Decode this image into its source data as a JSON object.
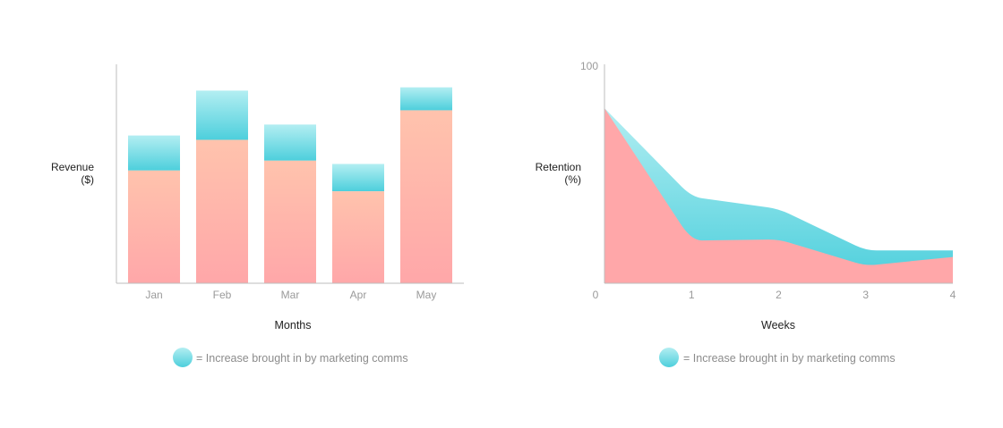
{
  "colors": {
    "base_top": "#ffc3ad",
    "base_bottom": "#ffa7a9",
    "increase_top": "#b3eef2",
    "increase_bottom": "#4dcfdc",
    "axis": "#bdbdbd",
    "tick_text": "#9a9a9a",
    "label_text": "#222222",
    "legend_text": "#8c8c8c"
  },
  "chart_data": [
    {
      "type": "bar",
      "stacked": true,
      "categories": [
        "Jan",
        "Feb",
        "Mar",
        "Apr",
        "May"
      ],
      "series": [
        {
          "values": [
            51.5,
            65.5,
            56,
            42,
            79
          ]
        },
        {
          "values": [
            16,
            22.5,
            16.5,
            12.5,
            10.5
          ]
        }
      ],
      "xlabel": "Months",
      "ylabel": [
        "Revenue",
        "($)"
      ],
      "ylim": [
        0,
        100
      ],
      "grid": false,
      "legend": {
        "text": "= Increase brought in by marketing comms",
        "placement": "bottom-center"
      }
    },
    {
      "type": "area",
      "stacked": true,
      "x": [
        0,
        1,
        2,
        3,
        4
      ],
      "x_ticks": [
        "0",
        "1",
        "2",
        "3",
        "4"
      ],
      "y_ticks": [
        "100"
      ],
      "series": [
        {
          "values": [
            80,
            19.5,
            20,
            8,
            12
          ]
        },
        {
          "values": [
            0,
            20,
            14,
            7,
            3
          ]
        }
      ],
      "xlabel": "Weeks",
      "ylabel": [
        "Retention",
        "(%)"
      ],
      "ylim": [
        0,
        100
      ],
      "xlim": [
        0,
        4
      ],
      "grid": false,
      "legend": {
        "text": "= Increase brought in by marketing comms",
        "placement": "bottom-center"
      }
    }
  ]
}
